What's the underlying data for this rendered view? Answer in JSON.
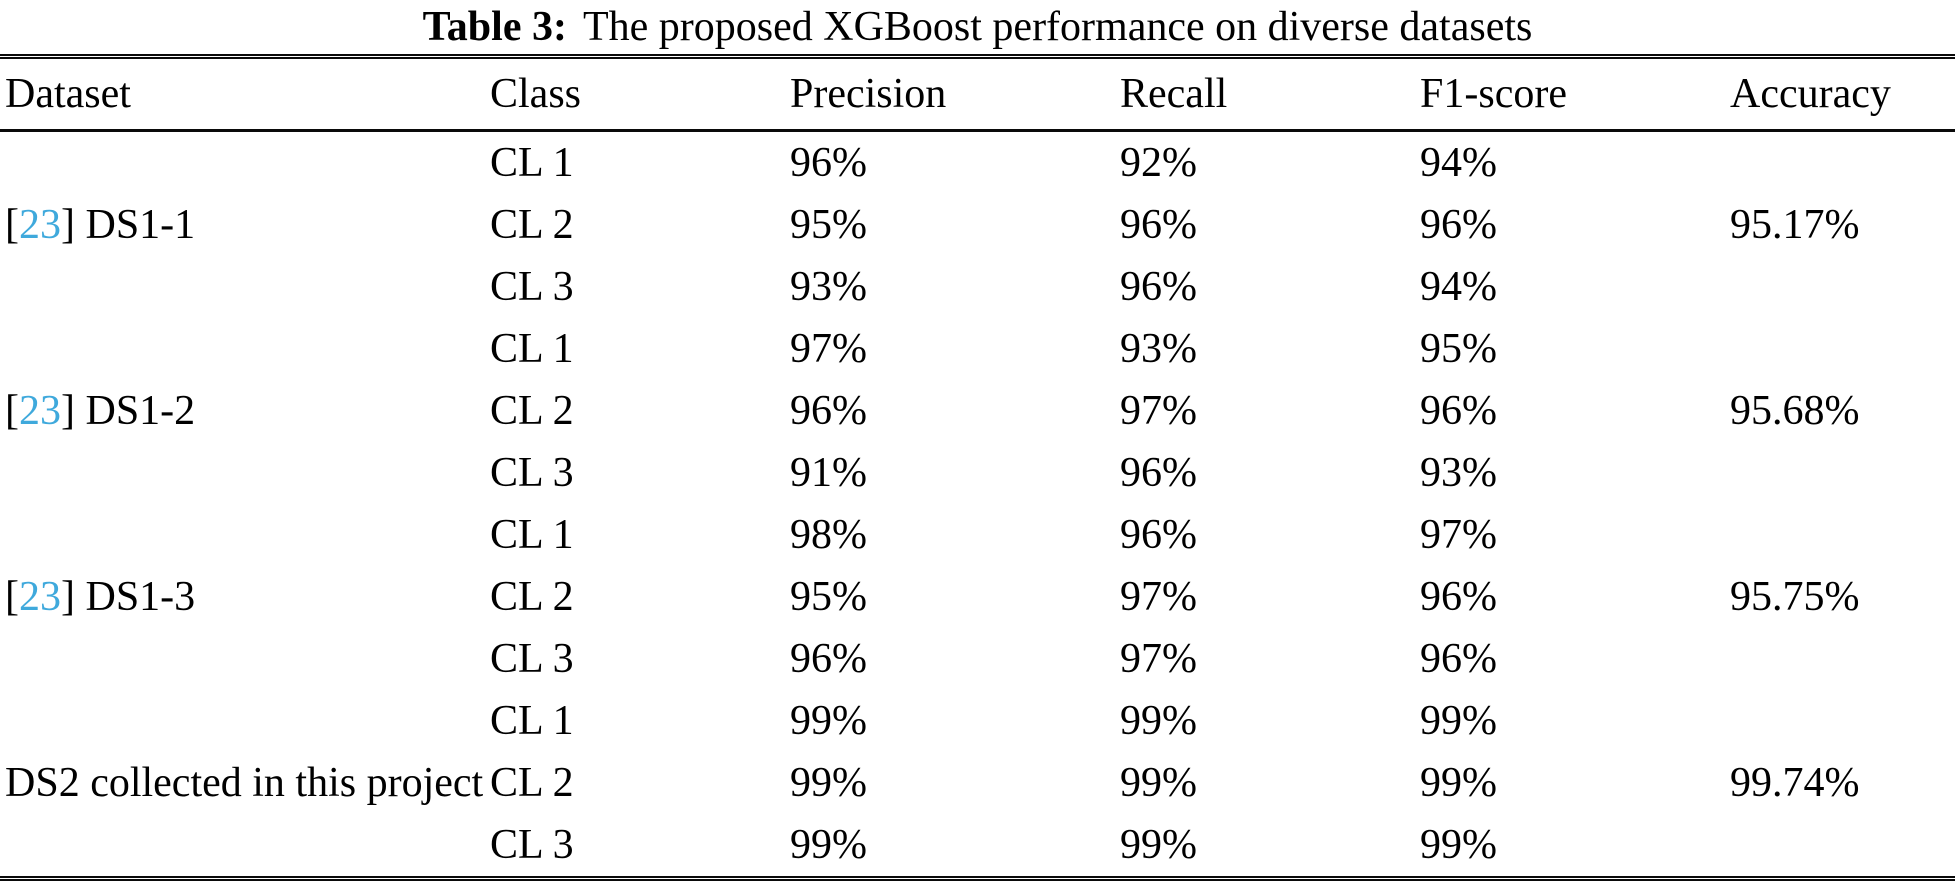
{
  "caption": {
    "label": "Table 3:",
    "text": "The proposed XGBoost performance on diverse datasets"
  },
  "columns": [
    "Dataset",
    "Class",
    "Precision",
    "Recall",
    "F1-score",
    "Accuracy"
  ],
  "colors": {
    "citation_link": "#3fa9dc",
    "text": "#000000",
    "rule": "#0a0a0a"
  },
  "groups": [
    {
      "citation": "23",
      "dataset": "DS1-1",
      "accuracy": "95.17%",
      "rows": [
        {
          "class": "CL 1",
          "precision": "96%",
          "recall": "92%",
          "f1": "94%"
        },
        {
          "class": "CL 2",
          "precision": "95%",
          "recall": "96%",
          "f1": "96%"
        },
        {
          "class": "CL 3",
          "precision": "93%",
          "recall": "96%",
          "f1": "94%"
        }
      ]
    },
    {
      "citation": "23",
      "dataset": "DS1-2",
      "accuracy": "95.68%",
      "rows": [
        {
          "class": "CL 1",
          "precision": "97%",
          "recall": "93%",
          "f1": "95%"
        },
        {
          "class": "CL 2",
          "precision": "96%",
          "recall": "97%",
          "f1": "96%"
        },
        {
          "class": "CL 3",
          "precision": "91%",
          "recall": "96%",
          "f1": "93%"
        }
      ]
    },
    {
      "citation": "23",
      "dataset": "DS1-3",
      "accuracy": "95.75%",
      "rows": [
        {
          "class": "CL 1",
          "precision": "98%",
          "recall": "96%",
          "f1": "97%"
        },
        {
          "class": "CL 2",
          "precision": "95%",
          "recall": "97%",
          "f1": "96%"
        },
        {
          "class": "CL 3",
          "precision": "96%",
          "recall": "97%",
          "f1": "96%"
        }
      ]
    },
    {
      "citation": null,
      "dataset": "DS2 collected in this project",
      "accuracy": "99.74%",
      "rows": [
        {
          "class": "CL 1",
          "precision": "99%",
          "recall": "99%",
          "f1": "99%"
        },
        {
          "class": "CL 2",
          "precision": "99%",
          "recall": "99%",
          "f1": "99%"
        },
        {
          "class": "CL 3",
          "precision": "99%",
          "recall": "99%",
          "f1": "99%"
        }
      ]
    }
  ]
}
